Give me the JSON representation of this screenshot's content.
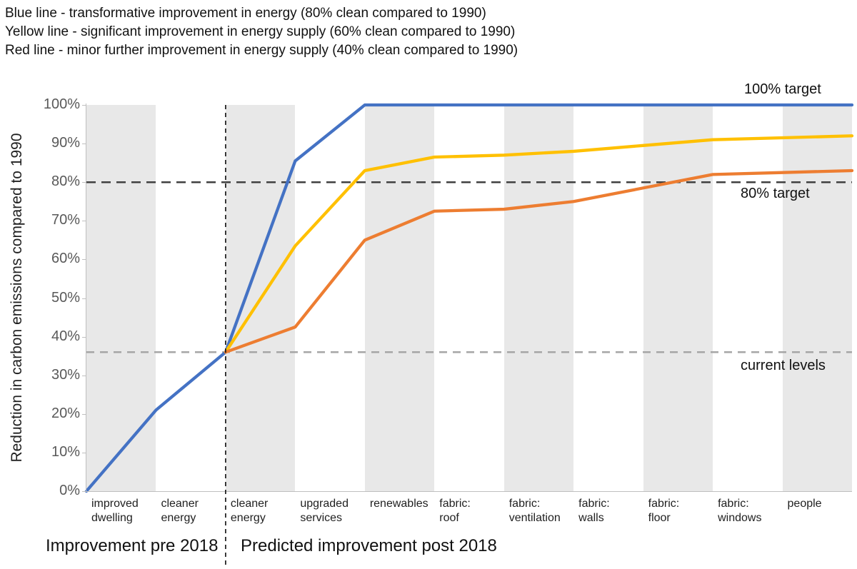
{
  "legend_lines": [
    "Blue line - transformative improvement in energy (80% clean compared to 1990)",
    "Yellow line - significant improvement in energy supply (60% clean compared to 1990)",
    "Red line - minor further improvement in energy supply (40% clean compared to 1990)"
  ],
  "y_axis_title": "Reduction in carbon emissions compared to 1990",
  "annotations": {
    "target_100": "100% target",
    "target_80": "80% target",
    "current_levels": "current levels"
  },
  "group_labels": {
    "pre": "Improvement pre 2018",
    "post": "Predicted improvement post 2018"
  },
  "colors": {
    "blue": "#4472C4",
    "yellow": "#FFC000",
    "red": "#ED7D31",
    "band_fill": "#E8E8E8",
    "dash_dark": "#404040",
    "dash_light": "#A6A6A6",
    "divider": "#1A1A1A",
    "axis": "#BFBFBF"
  },
  "chart_data": {
    "type": "line",
    "title": "",
    "ylabel": "Reduction in carbon emissions compared to 1990",
    "ylim": [
      0,
      100
    ],
    "y_ticks": [
      "0%",
      "10%",
      "20%",
      "30%",
      "40%",
      "50%",
      "60%",
      "70%",
      "80%",
      "90%",
      "100%"
    ],
    "categories": [
      "improved dwelling",
      "cleaner energy",
      "cleaner energy",
      "upgraded services",
      "renewables",
      "fabric: roof",
      "fabric: ventilation",
      "fabric: walls",
      "fabric: floor",
      "fabric: windows",
      "people"
    ],
    "categories_display": [
      "improved\ndwelling",
      "cleaner\nenergy",
      "cleaner\nenergy",
      "upgraded\nservices",
      "renewables",
      "fabric:\nroof",
      "fabric:\nventilation",
      "fabric:\nwalls",
      "fabric:\nfloor",
      "fabric:\nwindows",
      "people"
    ],
    "point_note": "12 data points plotted at the category boundaries; values are % reduction in carbon emissions vs 1990",
    "series": [
      {
        "name": "Blue line",
        "description": "transformative improvement in energy (80% clean compared to 1990)",
        "color": "#4472C4",
        "values": [
          0,
          21,
          36,
          85.5,
          100,
          100,
          100,
          100,
          100,
          100,
          100,
          100
        ]
      },
      {
        "name": "Yellow line",
        "description": "significant improvement in energy supply (60% clean compared to 1990)",
        "color": "#FFC000",
        "values": [
          null,
          null,
          36,
          63.5,
          83,
          86.5,
          87,
          88,
          89.5,
          91,
          91.5,
          92
        ]
      },
      {
        "name": "Red line",
        "description": "minor further improvement in energy supply (40% clean compared to 1990)",
        "color": "#ED7D31",
        "values": [
          null,
          null,
          36,
          42.5,
          65,
          72.5,
          73,
          75,
          78.5,
          82,
          82.5,
          83
        ]
      }
    ],
    "reference_lines": [
      {
        "label": "100% target",
        "value": 100,
        "style": "labels blue line plateau"
      },
      {
        "label": "80% target",
        "value": 80,
        "style": "dashed",
        "color": "#404040"
      },
      {
        "label": "current levels",
        "value": 36,
        "style": "dashed",
        "color": "#A6A6A6"
      }
    ],
    "divider": {
      "after_point_index": 2,
      "label_left": "Improvement pre 2018",
      "label_right": "Predicted improvement post 2018"
    },
    "plot_bands": {
      "pattern": "alternating vertical bands starting gray",
      "fill": "#E8E8E8"
    },
    "legend_position": "top-left text lines",
    "grid": "off"
  }
}
